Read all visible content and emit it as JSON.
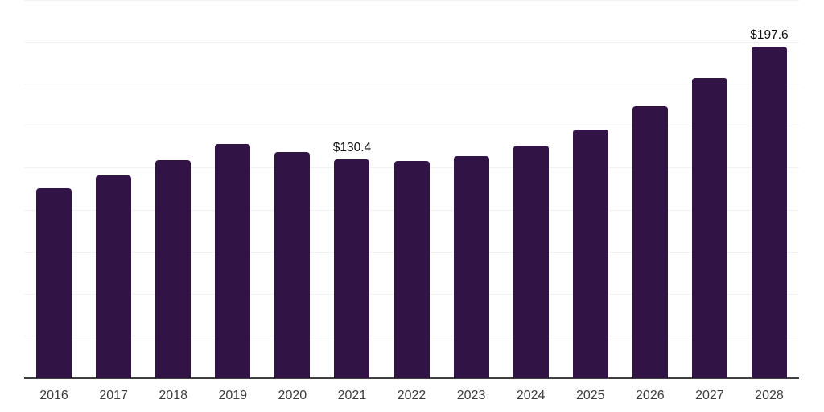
{
  "chart_data": {
    "type": "bar",
    "title": "",
    "xlabel": "",
    "ylabel": "",
    "categories": [
      "2016",
      "2017",
      "2018",
      "2019",
      "2020",
      "2021",
      "2022",
      "2023",
      "2024",
      "2025",
      "2026",
      "2027",
      "2028"
    ],
    "values": [
      113.0,
      121.1,
      129.9,
      139.5,
      134.6,
      130.4,
      129.3,
      132.3,
      138.6,
      148.4,
      162.1,
      179.1,
      197.6
    ],
    "value_prefix": "$",
    "annotations": [
      {
        "category": "2021",
        "label": "$130.4"
      },
      {
        "category": "2028",
        "label": "$197.6"
      }
    ],
    "ylim": [
      0,
      225
    ],
    "gridline_step": 25,
    "grid": true,
    "legend": false,
    "y_tick_labels_visible": false,
    "bar_color": "#321346",
    "gridline_color": "#f2f2f2",
    "axis_line_color": "#3f3f3f",
    "annotation_color": "#0d0d0d",
    "tick_label_color": "#3c3c3c"
  }
}
